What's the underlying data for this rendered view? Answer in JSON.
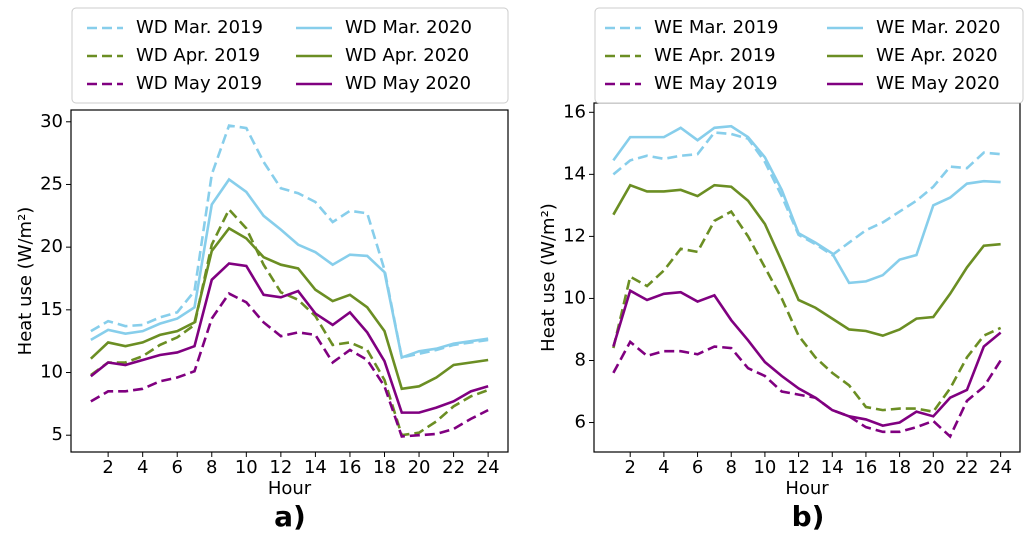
{
  "chart_data": [
    {
      "type": "line",
      "panel_label": "a)",
      "xlabel": "Hour",
      "ylabel": "Heat use (W/m²)",
      "x": [
        1,
        2,
        3,
        4,
        5,
        6,
        7,
        8,
        9,
        10,
        11,
        12,
        13,
        14,
        15,
        16,
        17,
        18,
        19,
        20,
        21,
        22,
        23,
        24
      ],
      "xlim": [
        -0.15,
        25.15
      ],
      "xticks": [
        2,
        4,
        6,
        8,
        10,
        12,
        14,
        16,
        18,
        20,
        22,
        24
      ],
      "ylim": [
        3.66,
        30.94
      ],
      "yticks": [
        5,
        10,
        15,
        20,
        25,
        30
      ],
      "grid": false,
      "legend": "upper center",
      "legend_columns": 2,
      "series": [
        {
          "name": "WD Mar. 2019",
          "color": "#87ceeb",
          "linestyle": "dashed",
          "values": [
            13.3,
            14.1,
            13.7,
            13.8,
            14.4,
            14.8,
            16.5,
            25.8,
            29.7,
            29.5,
            26.8,
            24.7,
            24.3,
            23.6,
            22.0,
            22.9,
            22.7,
            18.2,
            11.2,
            11.5,
            11.8,
            12.2,
            12.4,
            12.6
          ]
        },
        {
          "name": "WD Apr. 2019",
          "color": "#6b8e23",
          "linestyle": "dashed",
          "values": [
            9.8,
            10.8,
            10.8,
            11.3,
            12.2,
            12.8,
            13.8,
            20.2,
            23.0,
            21.5,
            18.6,
            16.4,
            15.8,
            14.5,
            12.2,
            12.4,
            11.8,
            9.4,
            5.0,
            5.2,
            6.1,
            7.3,
            8.1,
            8.6
          ]
        },
        {
          "name": "WD May 2019",
          "color": "#800080",
          "linestyle": "dashed",
          "values": [
            7.7,
            8.5,
            8.5,
            8.7,
            9.3,
            9.6,
            10.1,
            14.3,
            16.3,
            15.6,
            14.0,
            12.9,
            13.2,
            13.0,
            10.8,
            11.8,
            11.0,
            8.9,
            4.9,
            5.0,
            5.1,
            5.5,
            6.3,
            7.0
          ]
        },
        {
          "name": "WD Mar. 2020",
          "color": "#87ceeb",
          "linestyle": "solid",
          "values": [
            12.6,
            13.4,
            13.1,
            13.3,
            13.9,
            14.3,
            15.2,
            23.4,
            25.4,
            24.4,
            22.5,
            21.4,
            20.2,
            19.6,
            18.6,
            19.4,
            19.3,
            18.0,
            11.2,
            11.7,
            11.9,
            12.3,
            12.5,
            12.7
          ]
        },
        {
          "name": "WD Apr. 2020",
          "color": "#6b8e23",
          "linestyle": "solid",
          "values": [
            11.1,
            12.4,
            12.1,
            12.4,
            13.0,
            13.3,
            14.0,
            19.7,
            21.5,
            20.7,
            19.2,
            18.6,
            18.3,
            16.6,
            15.7,
            16.2,
            15.2,
            13.3,
            8.7,
            8.9,
            9.6,
            10.6,
            10.8,
            11.0
          ]
        },
        {
          "name": "WD May 2020",
          "color": "#800080",
          "linestyle": "solid",
          "values": [
            9.7,
            10.8,
            10.6,
            11.0,
            11.4,
            11.6,
            12.1,
            17.4,
            18.7,
            18.5,
            16.2,
            16.0,
            16.5,
            14.7,
            13.8,
            14.8,
            13.2,
            10.9,
            6.8,
            6.8,
            7.2,
            7.7,
            8.5,
            8.9
          ]
        }
      ]
    },
    {
      "type": "line",
      "panel_label": "b)",
      "xlabel": "Hour",
      "ylabel": "Heat use (W/m²)",
      "x": [
        1,
        2,
        3,
        4,
        5,
        6,
        7,
        8,
        9,
        10,
        11,
        12,
        13,
        14,
        15,
        16,
        17,
        18,
        19,
        20,
        21,
        22,
        23,
        24
      ],
      "xlim": [
        -0.15,
        25.15
      ],
      "xticks": [
        2,
        4,
        6,
        8,
        10,
        12,
        14,
        16,
        18,
        20,
        22,
        24
      ],
      "ylim": [
        5.05,
        16.3
      ],
      "yticks": [
        6,
        8,
        10,
        12,
        14,
        16
      ],
      "grid": false,
      "legend": "upper center",
      "legend_columns": 2,
      "series": [
        {
          "name": "WE Mar. 2019",
          "color": "#87ceeb",
          "linestyle": "dashed",
          "values": [
            14.0,
            14.45,
            14.6,
            14.5,
            14.6,
            14.65,
            15.35,
            15.3,
            15.15,
            14.4,
            13.3,
            12.05,
            11.75,
            11.4,
            11.8,
            12.2,
            12.45,
            12.8,
            13.15,
            13.6,
            14.25,
            14.2,
            14.7,
            14.65
          ]
        },
        {
          "name": "WE Apr. 2019",
          "color": "#6b8e23",
          "linestyle": "dashed",
          "values": [
            8.4,
            10.7,
            10.4,
            10.9,
            11.6,
            11.5,
            12.5,
            12.8,
            12.0,
            11.0,
            10.0,
            8.8,
            8.1,
            7.6,
            7.2,
            6.5,
            6.4,
            6.45,
            6.45,
            6.35,
            7.1,
            8.1,
            8.8,
            9.05
          ]
        },
        {
          "name": "WE May 2019",
          "color": "#800080",
          "linestyle": "dashed",
          "values": [
            7.6,
            8.6,
            8.15,
            8.3,
            8.3,
            8.2,
            8.45,
            8.4,
            7.75,
            7.5,
            7.0,
            6.9,
            6.8,
            6.4,
            6.2,
            5.85,
            5.7,
            5.7,
            5.85,
            6.05,
            5.55,
            6.7,
            7.15,
            8.0
          ]
        },
        {
          "name": "WE Mar. 2020",
          "color": "#87ceeb",
          "linestyle": "solid",
          "values": [
            14.45,
            15.2,
            15.2,
            15.2,
            15.5,
            15.1,
            15.5,
            15.55,
            15.2,
            14.55,
            13.5,
            12.1,
            11.8,
            11.45,
            10.5,
            10.55,
            10.75,
            11.25,
            11.4,
            13.0,
            13.25,
            13.7,
            13.78,
            13.75
          ]
        },
        {
          "name": "WE Apr. 2020",
          "color": "#6b8e23",
          "linestyle": "solid",
          "values": [
            12.7,
            13.65,
            13.45,
            13.45,
            13.5,
            13.3,
            13.65,
            13.6,
            13.15,
            12.4,
            11.2,
            9.95,
            9.7,
            9.35,
            9.0,
            8.95,
            8.8,
            9.0,
            9.35,
            9.4,
            10.15,
            11.0,
            11.7,
            11.75
          ]
        },
        {
          "name": "WE May 2020",
          "color": "#800080",
          "linestyle": "solid",
          "values": [
            8.45,
            10.25,
            9.95,
            10.15,
            10.2,
            9.9,
            10.1,
            9.3,
            8.65,
            7.95,
            7.5,
            7.1,
            6.8,
            6.4,
            6.2,
            6.1,
            5.9,
            6.0,
            6.35,
            6.2,
            6.8,
            7.05,
            8.45,
            8.9
          ]
        }
      ]
    }
  ]
}
